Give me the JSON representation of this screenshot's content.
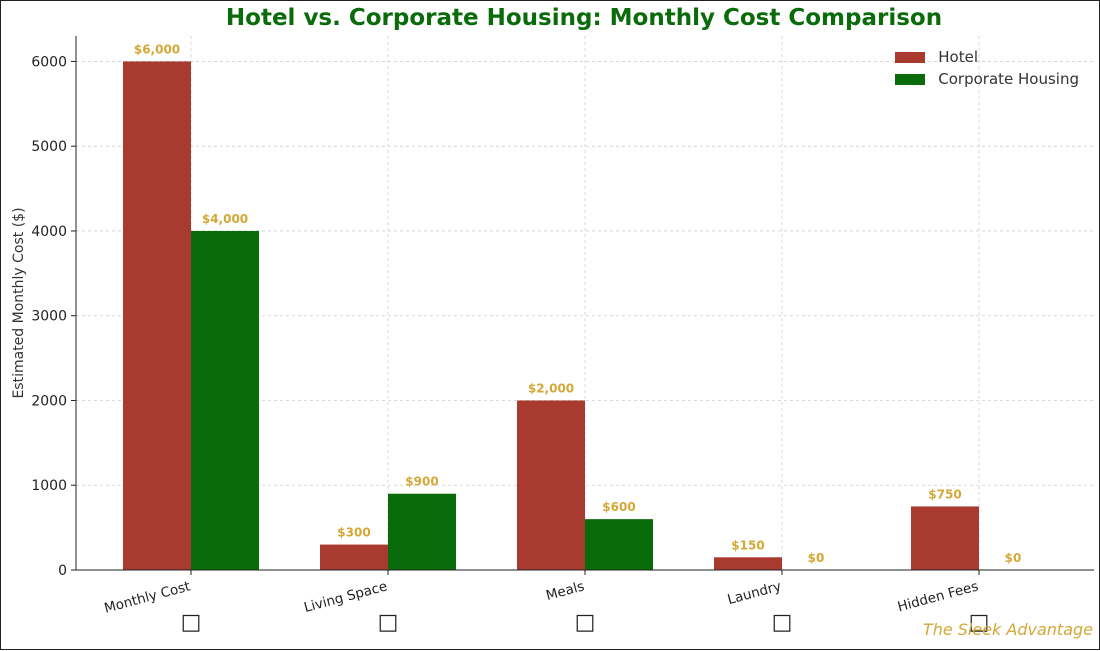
{
  "chart_data": {
    "type": "bar",
    "title": "Hotel vs. Corporate Housing: Monthly Cost Comparison",
    "ylabel": "Estimated Monthly Cost ($)",
    "xlabel": "",
    "categories": [
      "Monthly Cost",
      "Living Space",
      "Meals",
      "Laundry",
      "Hidden Fees"
    ],
    "category_icons": [
      "□",
      "□",
      "□",
      "□",
      "□"
    ],
    "series": [
      {
        "name": "Hotel",
        "color": "#a93a2f",
        "values": [
          6000,
          300,
          2000,
          150,
          750
        ],
        "labels": [
          "$6,000",
          "$300",
          "$2,000",
          "$150",
          "$750"
        ]
      },
      {
        "name": "Corporate Housing",
        "color": "#0a6b0a",
        "values": [
          4000,
          900,
          600,
          0,
          0
        ],
        "labels": [
          "$4,000",
          "$900",
          "$600",
          "$0",
          "$0"
        ]
      }
    ],
    "ylim": [
      0,
      6300
    ],
    "yticks": [
      0,
      1000,
      2000,
      3000,
      4000,
      5000,
      6000
    ],
    "grid": true,
    "legend_position": "top-right",
    "label_color": "#d4a837",
    "title_color": "#0a6b0a"
  },
  "watermark": "The Sleek Advantage"
}
